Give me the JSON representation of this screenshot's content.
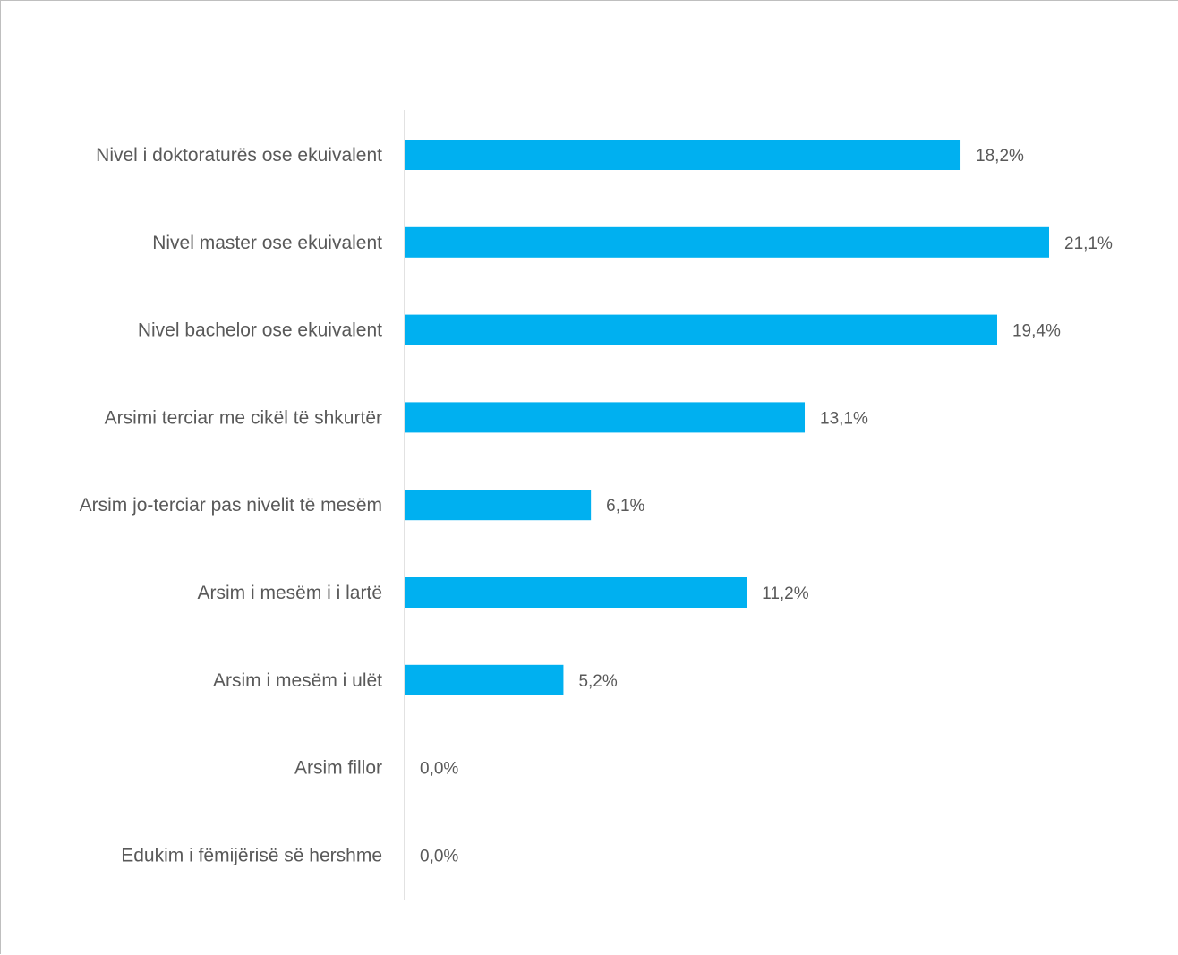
{
  "chart_data": {
    "type": "bar",
    "orientation": "horizontal",
    "title": "",
    "xlabel": "",
    "ylabel": "",
    "categories": [
      "Nivel i doktoraturës ose ekuivalent",
      "Nivel master ose ekuivalent",
      "Nivel bachelor ose ekuivalent",
      "Arsimi terciar me cikël të shkurtër",
      "Arsim jo-terciar pas nivelit të mesëm",
      "Arsim i mesëm i i lartë",
      "Arsim i mesëm i ulët",
      "Arsim fillor",
      "Edukim i fëmijërisë së hershme"
    ],
    "values": [
      18.2,
      21.1,
      19.4,
      13.1,
      6.1,
      11.2,
      5.2,
      0.0,
      0.0
    ],
    "value_labels": [
      "18,2%",
      "21,1%",
      "19,4%",
      "13,1%",
      "6,1%",
      "11,2%",
      "5,2%",
      "0,0%",
      "0,0%"
    ],
    "unit": "%",
    "xlim": [
      0,
      23.3
    ],
    "grid": false,
    "legend": "none",
    "colors": {
      "bar": "#00b0f0",
      "axis": "#d9d9d9",
      "text": "#595959",
      "border": "#bfbfbf"
    }
  }
}
